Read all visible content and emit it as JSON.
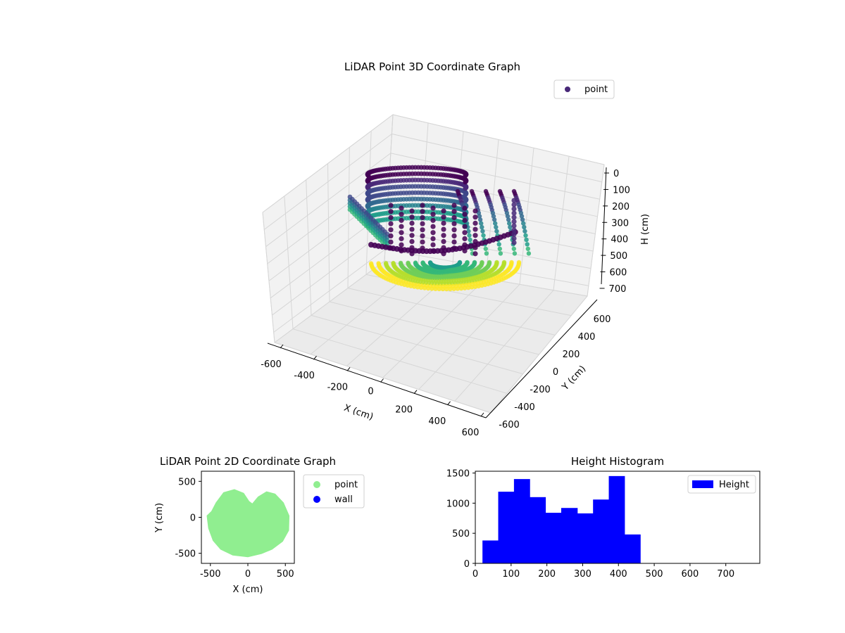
{
  "chart_data": [
    {
      "type": "scatter3d",
      "title": "LiDAR Point 3D Coordinate Graph",
      "xlabel": "X (cm)",
      "ylabel": "Y (cm)",
      "zlabel": "H (cm)",
      "xticks": [
        -600,
        -400,
        -200,
        0,
        200,
        400,
        600
      ],
      "yticks": [
        -600,
        -400,
        -200,
        0,
        200,
        400,
        600
      ],
      "zticks": [
        0,
        100,
        200,
        300,
        400,
        500,
        600,
        700
      ],
      "xlim": [
        -600,
        600
      ],
      "ylim": [
        -600,
        600
      ],
      "zlim": [
        0,
        760
      ],
      "z_inverted": true,
      "colormap": "viridis",
      "legend": [
        {
          "label": "point",
          "color": "#482878"
        }
      ],
      "legend_position": "upper right",
      "grid": true
    },
    {
      "type": "scatter",
      "title": "LiDAR Point 2D Coordinate Graph",
      "xlabel": "X (cm)",
      "ylabel": "Y (cm)",
      "xticks": [
        -500,
        0,
        500
      ],
      "yticks": [
        -500,
        0,
        500
      ],
      "xlim": [
        -620,
        620
      ],
      "ylim": [
        -640,
        640
      ],
      "series": [
        {
          "name": "point",
          "color": "#90ee90"
        },
        {
          "name": "wall",
          "color": "#0000ff"
        }
      ],
      "legend_position": "outside right"
    },
    {
      "type": "bar",
      "title": "Height Histogram",
      "xticks": [
        0,
        100,
        200,
        300,
        400,
        500,
        600,
        700
      ],
      "yticks": [
        0,
        500,
        1000,
        1500
      ],
      "xlim": [
        0,
        795
      ],
      "ylim": [
        0,
        1530
      ],
      "bin_edges": [
        20,
        64,
        108,
        152,
        196,
        240,
        285,
        329,
        373,
        417,
        461
      ],
      "values": [
        380,
        1190,
        1400,
        1100,
        840,
        920,
        830,
        1060,
        1450,
        480
      ],
      "series": [
        {
          "name": "Height",
          "color": "#0000ff"
        }
      ],
      "legend_position": "upper right"
    }
  ]
}
